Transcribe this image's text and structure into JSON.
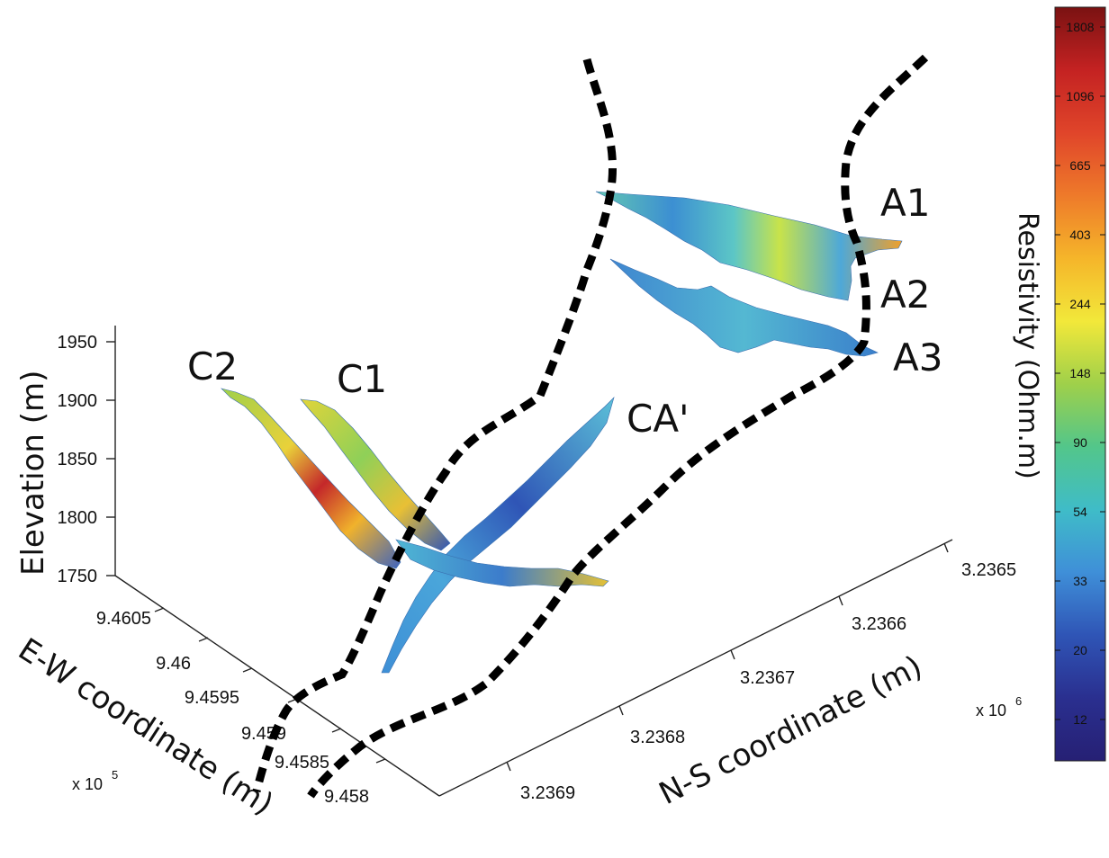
{
  "chart_data": {
    "type": "3d-section-plot",
    "title": "",
    "zlabel": "Elevation (m)",
    "xlabel": "E-W coordinate (m)",
    "ylabel": "N-S coordinate (m)",
    "x_exponent": "x 10",
    "x_exponent_power": "5",
    "y_exponent": "x 10",
    "y_exponent_power": "6",
    "z_ticks": [
      "1950",
      "1900",
      "1850",
      "1800",
      "1750"
    ],
    "x_ticks": [
      "9.4605",
      "9.46",
      "9.4595",
      "9.459",
      "9.4585",
      "9.458"
    ],
    "y_ticks": [
      "3.2365",
      "3.2366",
      "3.2367",
      "3.2368",
      "3.2369"
    ],
    "sections": [
      "A1",
      "A2",
      "A3",
      "C2",
      "C1",
      "CA'"
    ],
    "colorbar": {
      "label": "Resistivity (Ohm.m)",
      "ticks": [
        "1808",
        "1096",
        "665",
        "403",
        "244",
        "148",
        "90",
        "54",
        "33",
        "20",
        "12"
      ],
      "colors": [
        "#7a1212",
        "#c42222",
        "#e0452a",
        "#ee7a2a",
        "#f5b52a",
        "#f2e83a",
        "#9fd04a",
        "#53c68a",
        "#3fbcc8",
        "#3f8fd8",
        "#2f55b6",
        "#2a2f8f",
        "#262074"
      ]
    }
  }
}
